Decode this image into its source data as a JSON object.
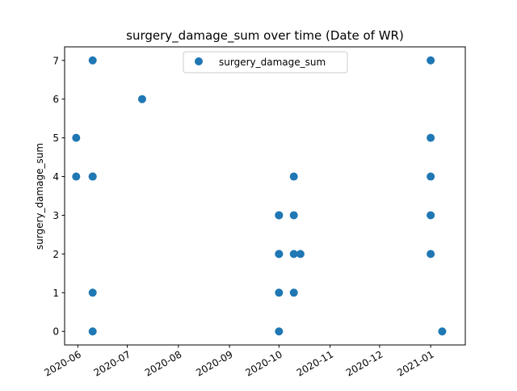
{
  "chart_data": {
    "type": "scatter",
    "title": "surgery_damage_sum over time (Date of WR)",
    "xlabel": "",
    "ylabel": "surgery_damage_sum",
    "x_axis": "date",
    "xlim": [
      "2020-05-24",
      "2021-01-22"
    ],
    "ylim": [
      -0.35,
      7.35
    ],
    "x_ticks": [
      "2020-06",
      "2020-07",
      "2020-08",
      "2020-09",
      "2020-10",
      "2020-11",
      "2020-12",
      "2021-01"
    ],
    "x_tick_dates": [
      "2020-06-01",
      "2020-07-01",
      "2020-08-01",
      "2020-09-01",
      "2020-10-01",
      "2020-11-01",
      "2020-12-01",
      "2021-01-01"
    ],
    "y_ticks": [
      0,
      1,
      2,
      3,
      4,
      5,
      6,
      7
    ],
    "grid": false,
    "legend_position": "upper center",
    "series": [
      {
        "name": "surgery_damage_sum",
        "color": "#1f77b4",
        "points": [
          {
            "x": "2020-05-31",
            "y": 5
          },
          {
            "x": "2020-05-31",
            "y": 4
          },
          {
            "x": "2020-06-10",
            "y": 7
          },
          {
            "x": "2020-06-10",
            "y": 4
          },
          {
            "x": "2020-06-10",
            "y": 4
          },
          {
            "x": "2020-06-10",
            "y": 1
          },
          {
            "x": "2020-06-10",
            "y": 0
          },
          {
            "x": "2020-07-10",
            "y": 6
          },
          {
            "x": "2020-10-01",
            "y": 3
          },
          {
            "x": "2020-10-01",
            "y": 3
          },
          {
            "x": "2020-10-01",
            "y": 2
          },
          {
            "x": "2020-10-01",
            "y": 2
          },
          {
            "x": "2020-10-01",
            "y": 1
          },
          {
            "x": "2020-10-01",
            "y": 0
          },
          {
            "x": "2020-10-10",
            "y": 4
          },
          {
            "x": "2020-10-10",
            "y": 3
          },
          {
            "x": "2020-10-10",
            "y": 2
          },
          {
            "x": "2020-10-10",
            "y": 1
          },
          {
            "x": "2020-10-14",
            "y": 2
          },
          {
            "x": "2021-01-01",
            "y": 7
          },
          {
            "x": "2021-01-01",
            "y": 5
          },
          {
            "x": "2021-01-01",
            "y": 4
          },
          {
            "x": "2021-01-01",
            "y": 3
          },
          {
            "x": "2021-01-01",
            "y": 2
          },
          {
            "x": "2021-01-08",
            "y": 0
          }
        ]
      }
    ]
  }
}
